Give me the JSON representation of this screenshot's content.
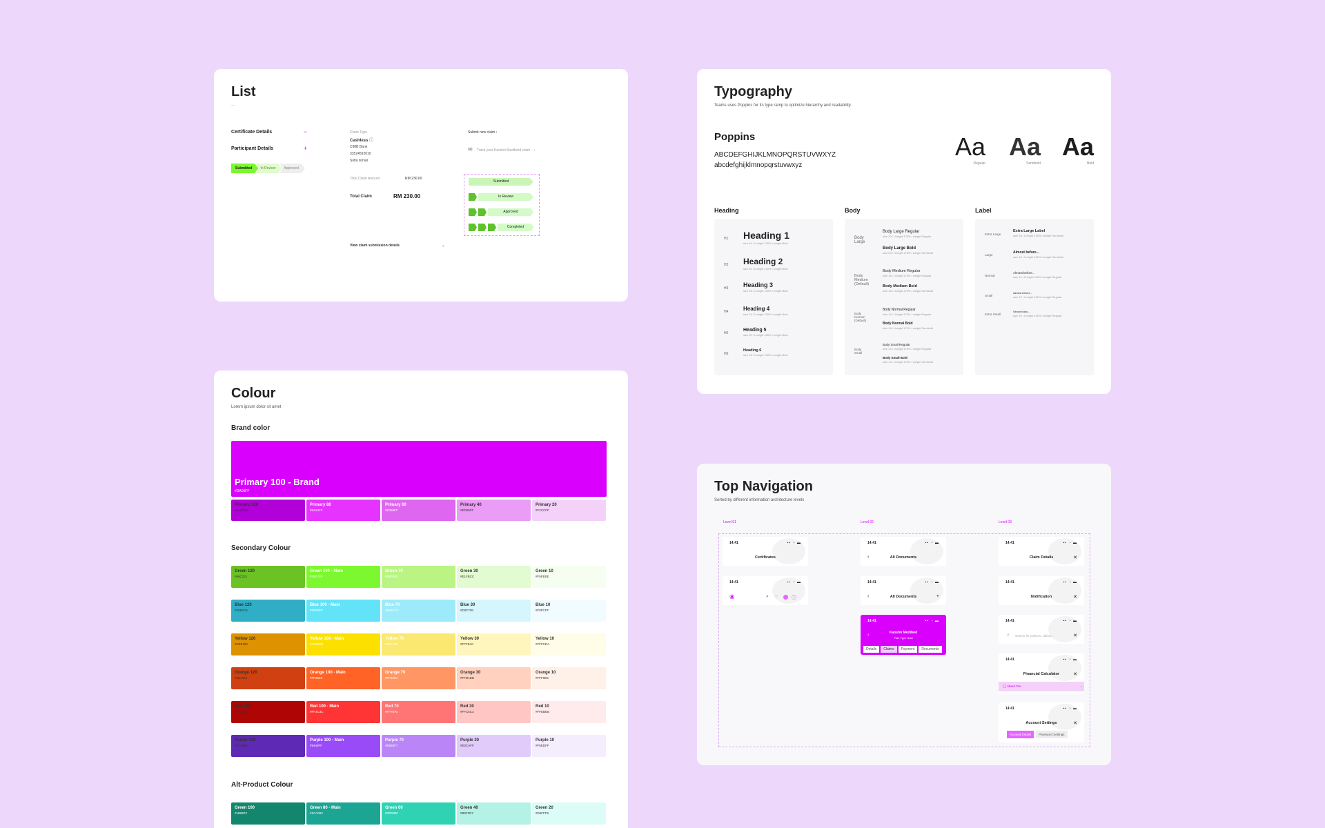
{
  "list": {
    "title": "List",
    "dash": "—",
    "rows": [
      {
        "label": "Certificate Details",
        "icon": "−"
      },
      {
        "label": "Participant Details",
        "icon": "+"
      }
    ],
    "stepper": [
      "Submitted",
      "In Review",
      "Approved"
    ],
    "claim_type_label": "Claim Type",
    "claim_type": "Cashless",
    "company": "CIMB Bank",
    "policy_no": "33524592010",
    "name": "Sofia Ismail",
    "total_claim_amount_label": "Total Claim Amount",
    "total_claim_amount": "RM 230.00",
    "total_claim_label": "Total Claim",
    "total_claim": "RM 230.00",
    "view_details": "View claim submission details",
    "submit_new": "Submit new claim ›",
    "track": "Track your Kaoshn Medibord claim",
    "statuses": [
      "Submitted",
      "In Review",
      "Approved",
      "Completed"
    ]
  },
  "colour": {
    "title": "Colour",
    "subtitle": "Lorem ipsum dolor sit amet",
    "brand_heading": "Brand color",
    "brand": {
      "name": "Primary 100 - Brand",
      "hex": "#DA00FF",
      "color": "#D900FE"
    },
    "primary": [
      {
        "name": "Primary 120",
        "hex": "#B100D9",
        "color": "#B100D8"
      },
      {
        "name": "Primary 80",
        "hex": "#E633FF",
        "color": "#E633FF"
      },
      {
        "name": "Primary 60",
        "hex": "#E366FF",
        "color": "#DF66F0"
      },
      {
        "name": "Primary 40",
        "hex": "#ED99FF",
        "color": "#EA9CF6"
      },
      {
        "name": "Primary 20",
        "hex": "#F2CCFF",
        "color": "#F4D1F9"
      }
    ],
    "secondary_heading": "Secondary Colour",
    "secondary": [
      [
        {
          "name": "Green 120",
          "hex": "#66C221",
          "color": "#6BC224"
        },
        {
          "name": "Green 100 - Main",
          "hex": "#7BF72F",
          "color": "#7DF830"
        },
        {
          "name": "Green 70",
          "hex": "#B8F583",
          "color": "#BAF583"
        },
        {
          "name": "Green 30",
          "hex": "#E1FBCC",
          "color": "#E2FBD1"
        },
        {
          "name": "Green 10",
          "hex": "#F5FEEE",
          "color": "#F5FEF0"
        }
      ],
      [
        {
          "name": "Blue 120",
          "hex": "#30B0C6",
          "color": "#30AEC6"
        },
        {
          "name": "Blue 100 - Main",
          "hex": "#5FE5F8",
          "color": "#63E3F8"
        },
        {
          "name": "Blue 70",
          "hex": "#9BECFC",
          "color": "#9CEAFA"
        },
        {
          "name": "Blue 30",
          "hex": "#D0F7FE",
          "color": "#D5F6FC"
        },
        {
          "name": "Blue 10",
          "hex": "#F0FCFF",
          "color": "#F0FCFF"
        }
      ],
      [
        {
          "name": "Yellow 120",
          "hex": "#DE9100",
          "color": "#DE9200"
        },
        {
          "name": "Yellow 100 - Main",
          "hex": "#FCE000",
          "color": "#FCE100"
        },
        {
          "name": "Yellow 70",
          "hex": "#F8F168",
          "color": "#FAE871"
        },
        {
          "name": "Yellow 30",
          "hex": "#FFF8A0",
          "color": "#FEF6BD"
        },
        {
          "name": "Yellow 10",
          "hex": "#FFFCDA",
          "color": "#FFFDE8"
        }
      ],
      [
        {
          "name": "Orange 120",
          "hex": "#D04312",
          "color": "#D04010"
        },
        {
          "name": "Orange 100 - Main",
          "hex": "#FF6523",
          "color": "#FF6325"
        },
        {
          "name": "Orange 70",
          "hex": "#FF9464",
          "color": "#FF9663"
        },
        {
          "name": "Orange 30",
          "hex": "#FFD1BD",
          "color": "#FFD1BE"
        },
        {
          "name": "Orange 10",
          "hex": "#FFF0E5",
          "color": "#FFF0E8"
        }
      ],
      [
        {
          "name": "Red 120",
          "hex": "#B00000",
          "color": "#B00505"
        },
        {
          "name": "Red 100 - Main",
          "hex": "#FF3C3C",
          "color": "#FF3434"
        },
        {
          "name": "Red 70",
          "hex": "#FF7070",
          "color": "#FF7474"
        },
        {
          "name": "Red 30",
          "hex": "#FFC5C3",
          "color": "#FFC6C4"
        },
        {
          "name": "Red 10",
          "hex": "#FFEBEB",
          "color": "#FFEBEB"
        }
      ],
      [
        {
          "name": "Purple 120",
          "hex": "#5C29B8",
          "color": "#5E29B5"
        },
        {
          "name": "Purple 100 - Main",
          "hex": "#9449FF",
          "color": "#9A4BF8"
        },
        {
          "name": "Purple 70",
          "hex": "#B885F7",
          "color": "#BA85F7"
        },
        {
          "name": "Purple 30",
          "hex": "#E0CAFF",
          "color": "#E1CBFA"
        },
        {
          "name": "Purple 10",
          "hex": "#F5EDFF",
          "color": "#F4EDFD"
        }
      ]
    ],
    "alt_heading": "Alt-Product Colour",
    "alt": [
      {
        "name": "Green 100",
        "hex": "#1B8872",
        "color": "#13876E"
      },
      {
        "name": "Green 80 - Main",
        "hex": "#1CA093",
        "color": "#1CA592"
      },
      {
        "name": "Green 60",
        "hex": "#30D0B0",
        "color": "#2FD3B4"
      },
      {
        "name": "Green 40",
        "hex": "#B0F3E7",
        "color": "#B3F2E5"
      },
      {
        "name": "Green 20",
        "hex": "#D6FFF9",
        "color": "#DCFDF7"
      }
    ]
  },
  "typography": {
    "title": "Typography",
    "subtitle": "Teams uses Poppins for its type ramp to optimize hierarchy and readability.",
    "font": "Poppins",
    "upper": "ABCDEFGHIJKLMNOPQRSTUVWXYZ",
    "lower": "abcdefghijklmnopqrstuvwxyz",
    "samples": [
      {
        "glyph": "Aa",
        "label": "Regular"
      },
      {
        "glyph": "Aa",
        "label": "Semibold"
      },
      {
        "glyph": "Aa",
        "label": "Bold"
      }
    ],
    "heading_title": "Heading",
    "body_title": "Body",
    "label_title": "Label",
    "headings": [
      {
        "tag": "H1",
        "name": "Heading 1",
        "desc": "size 40 / l-height 130% / weight Bold"
      },
      {
        "tag": "H2",
        "name": "Heading 2",
        "desc": "size 32 / l-height 130% / weight Bold"
      },
      {
        "tag": "H3",
        "name": "Heading 3",
        "desc": "size 26 / l-height 130% / weight Bold"
      },
      {
        "tag": "H4",
        "name": "Heading 4",
        "desc": "size 24 / l-height 130% / weight Bold"
      },
      {
        "tag": "H5",
        "name": "Heading 5",
        "desc": "size 20 / l-height 130% / weight Bold"
      },
      {
        "tag": "H6",
        "name": "Heading 6",
        "desc": "size 18 / l-height 130% / weight Bold"
      }
    ],
    "body": [
      {
        "tag": "Body Large",
        "items": [
          {
            "name": "Body Large Regular",
            "desc": "size 20 / l-height 175% / weight Regular"
          },
          {
            "name": "Body Large Bold",
            "desc": "size 20 / l-height 175% / weight Semibold"
          }
        ]
      },
      {
        "tag": "Body Medium (Default)",
        "items": [
          {
            "name": "Body Medium Regular",
            "desc": "size 18 / l-height 175% / weight Regular"
          },
          {
            "name": "Body Medium Bold",
            "desc": "size 18 / l-height 175% / weight Semibold"
          }
        ]
      },
      {
        "tag": "Body Normal (Default)",
        "items": [
          {
            "name": "Body Normal Regular",
            "desc": "size 16 / l-height 175% / weight Regular"
          },
          {
            "name": "Body Normal Bold",
            "desc": "size 16 / l-height 175% / weight Semibold"
          }
        ]
      },
      {
        "tag": "Body Small",
        "items": [
          {
            "name": "Body Small Regular",
            "desc": "size 14 / l-height 175% / weight Regular"
          },
          {
            "name": "Body Small Bold",
            "desc": "size 14 / l-height 175% / weight Semibold"
          }
        ]
      }
    ],
    "labels": [
      {
        "tag": "Extra Large",
        "name": "Extra Large Label",
        "desc": "size 18 / l-height 130% / weight Semibold"
      },
      {
        "tag": "Large",
        "name": "Almost before...",
        "desc": "size 16 / l-height 150% / weight Semibold"
      },
      {
        "tag": "Normal",
        "name": "Almost before...",
        "desc": "size 14 / l-height 150% / weight Regular"
      },
      {
        "tag": "Small",
        "name": "Almost before...",
        "desc": "size 12 / l-height 150% / weight Regular"
      },
      {
        "tag": "Extra Small",
        "name": "Second abo...",
        "desc": "size 10 / l-height 150% / weight Regular"
      }
    ]
  },
  "nav": {
    "title": "Top Navigation",
    "subtitle": "Sorted by different information architecture levels",
    "levels": [
      "Level 01",
      "Level 02",
      "Level 03"
    ],
    "time": "14:41",
    "signal": "▪▪ ◔ ▬",
    "l1": [
      "Certificates"
    ],
    "l2": [
      "All Documents",
      "All Documents"
    ],
    "banner": {
      "title": "Kaoshn Medibod",
      "sub": "Plan Type Gold",
      "tabs": [
        "Details",
        "Claims",
        "Payment",
        "Documents"
      ]
    },
    "l3": [
      "Claim Details",
      "Notification",
      "Search for policies, claims...",
      "Financial Calculator",
      "Account Settings"
    ],
    "about": "About You",
    "acct_tabs": [
      "Account Details",
      "Password Settings"
    ]
  }
}
